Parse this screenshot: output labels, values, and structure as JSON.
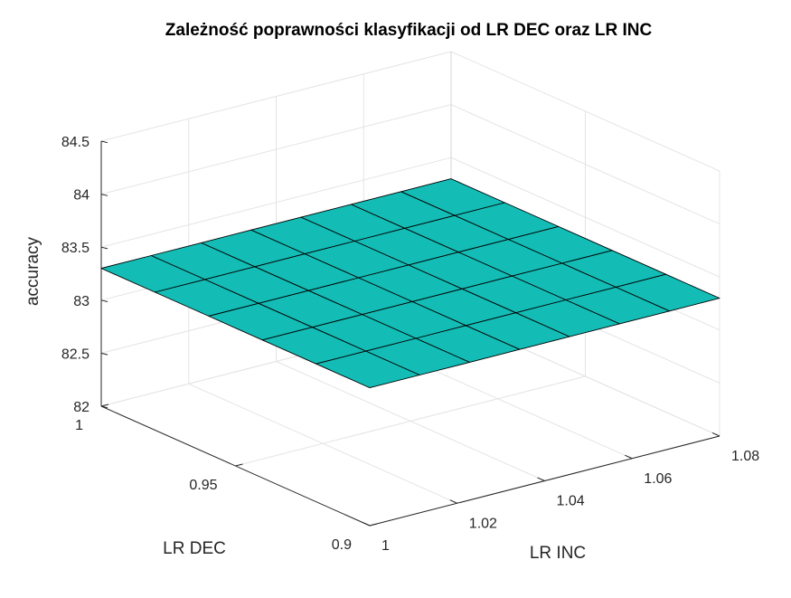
{
  "chart_data": {
    "type": "surface",
    "title": "Zależność poprawności klasyfikacji od LR DEC oraz LR INC",
    "xlabel": "LR INC",
    "ylabel": "LR DEC",
    "zlabel": "accuracy",
    "xlim": [
      1,
      1.08
    ],
    "ylim": [
      0.9,
      1
    ],
    "zlim": [
      82,
      84.5
    ],
    "x_ticks": [
      "1",
      "1.02",
      "1.04",
      "1.06",
      "1.08"
    ],
    "y_ticks": [
      "0.9",
      "0.95",
      "1"
    ],
    "z_ticks": [
      "82",
      "82.5",
      "83",
      "83.5",
      "84",
      "84.5"
    ],
    "grid": true,
    "surface_color": "#13BDB6",
    "edge_color": "#000000",
    "surface_rows_lr_dec_from_1_to_0_9": [
      [
        83.3,
        83.3,
        83.3,
        83.3,
        83.3,
        83.3,
        83.3,
        83.3
      ],
      [
        83.3,
        83.3,
        83.3,
        83.3,
        83.3,
        83.3,
        83.3,
        83.3
      ],
      [
        83.3,
        83.3,
        83.3,
        83.3,
        83.3,
        83.3,
        83.3,
        83.3
      ],
      [
        83.3,
        83.3,
        83.3,
        83.3,
        83.3,
        83.3,
        83.3,
        83.3
      ],
      [
        83.3,
        83.3,
        83.3,
        83.3,
        83.3,
        83.3,
        83.3,
        83.3
      ],
      [
        83.3,
        83.3,
        83.3,
        83.3,
        83.3,
        83.3,
        83.3,
        83.3
      ]
    ]
  }
}
